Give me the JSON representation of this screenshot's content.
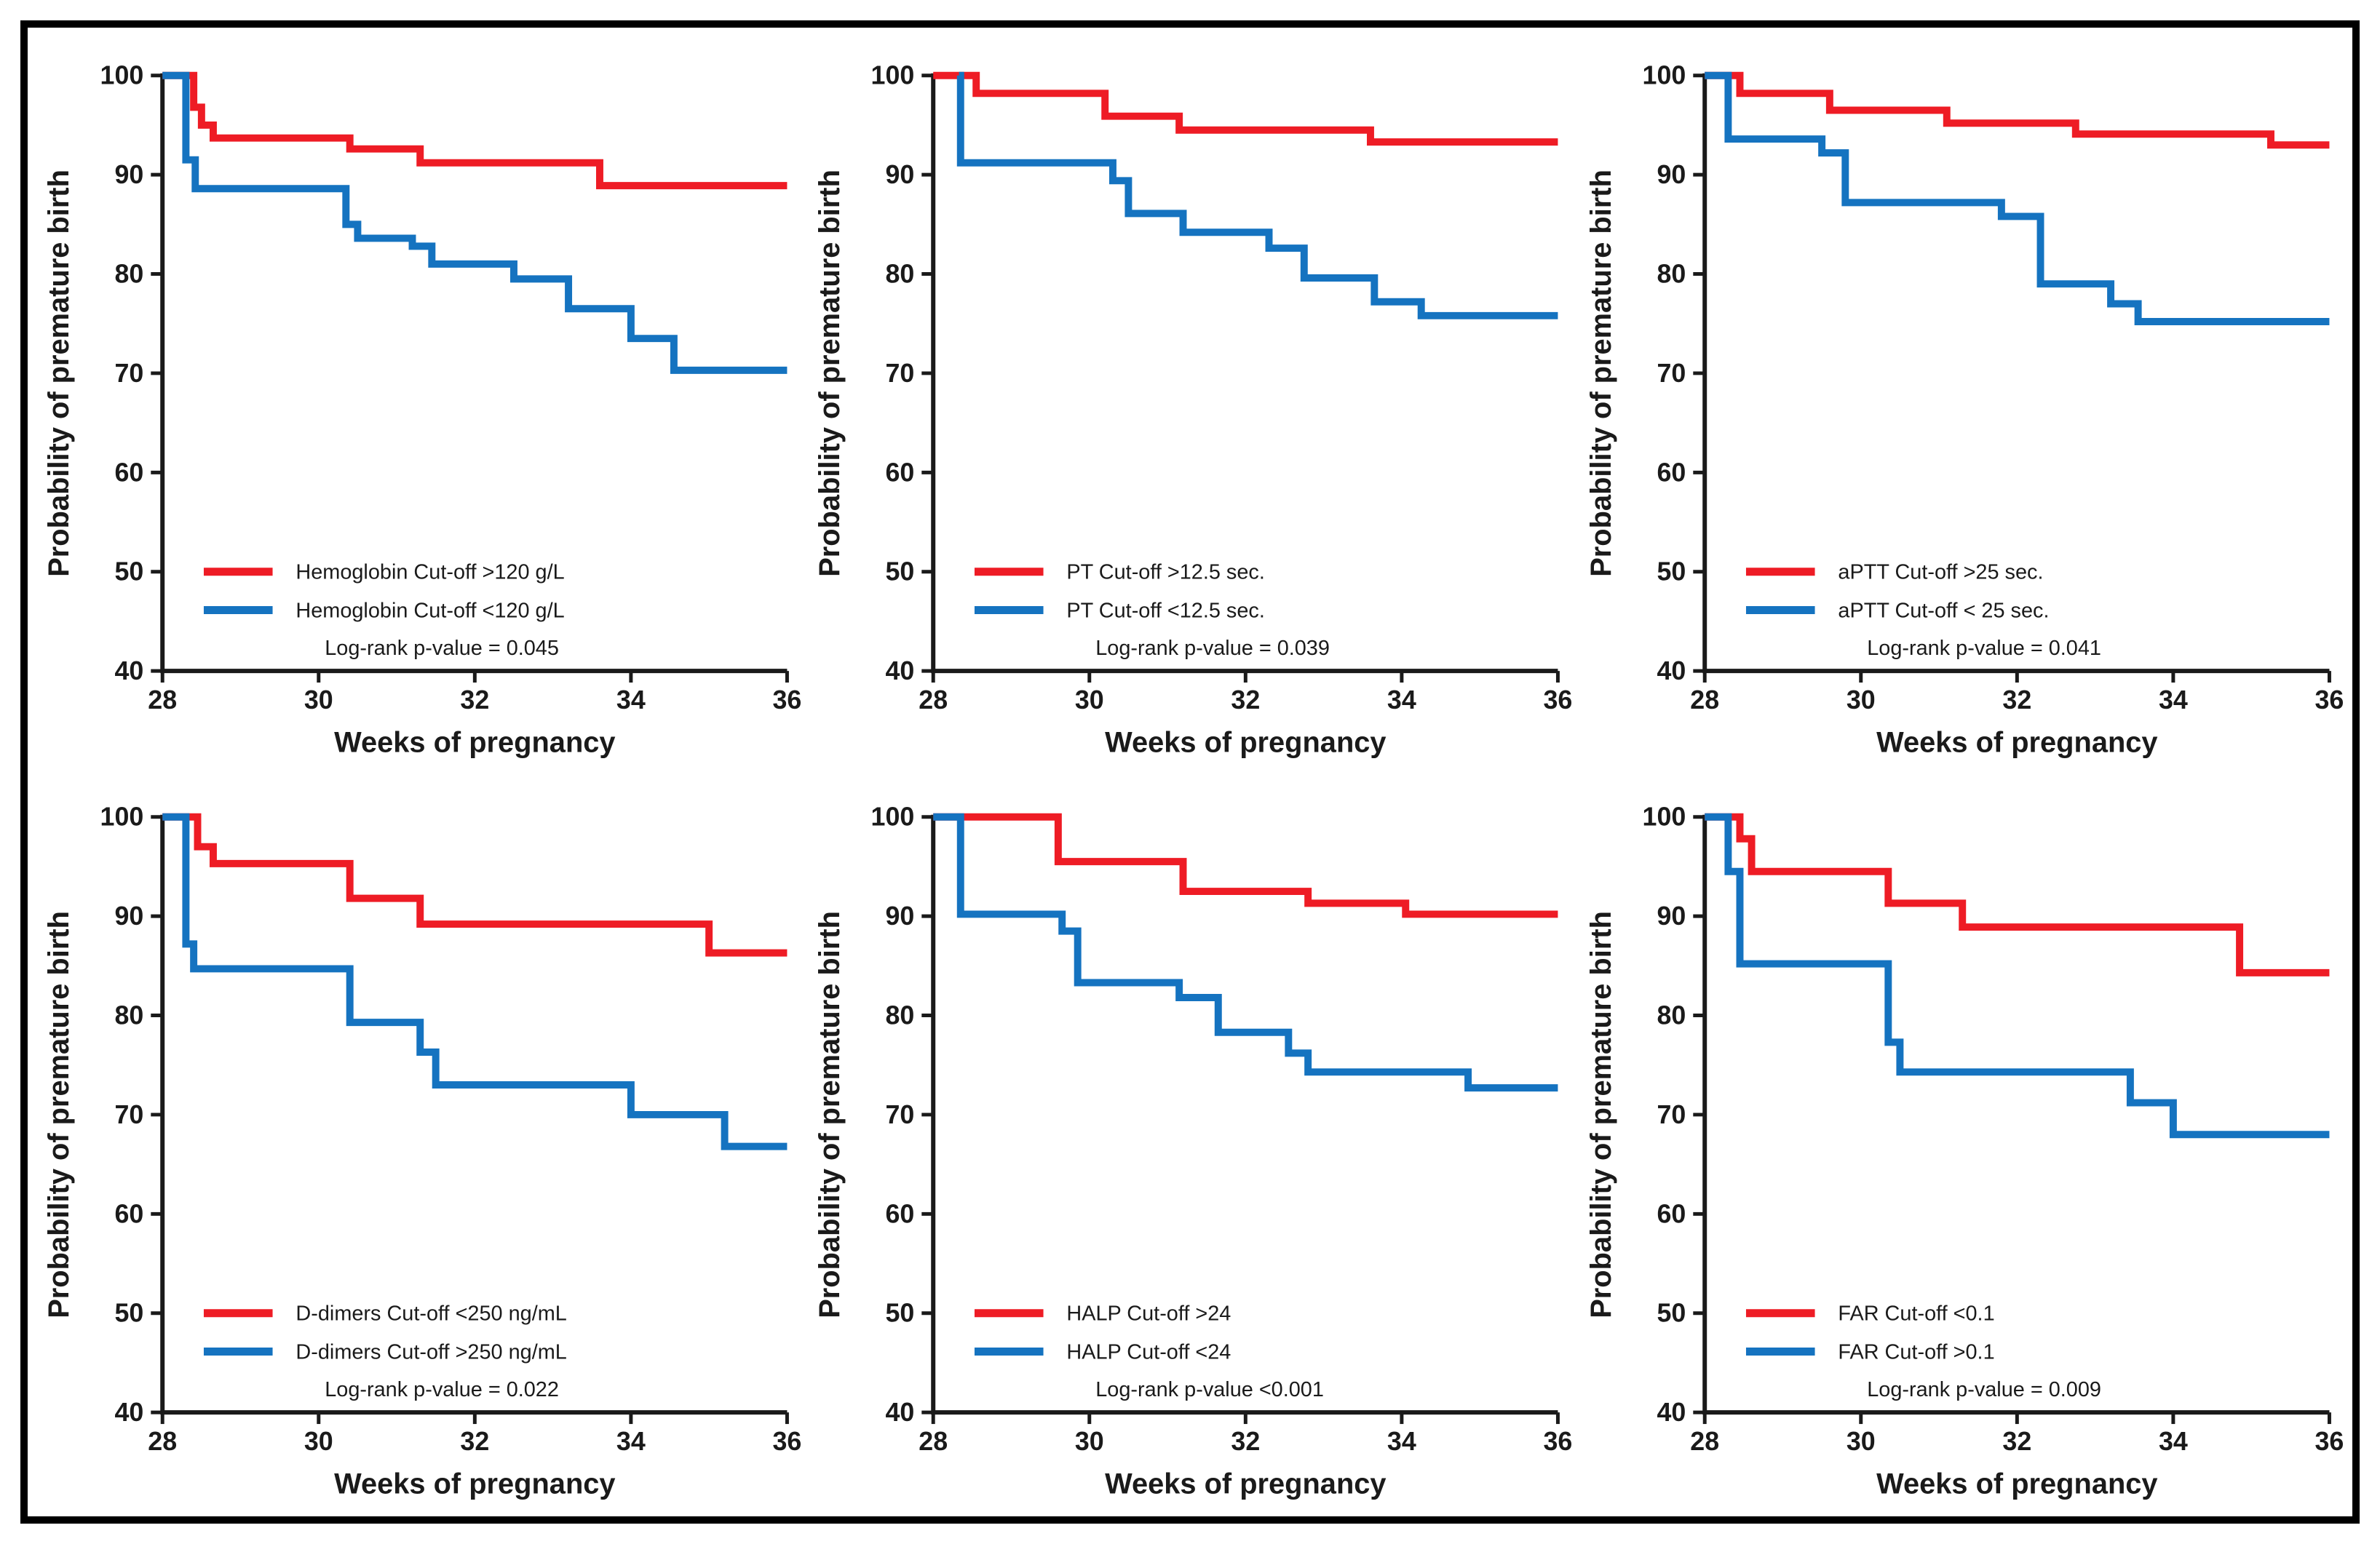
{
  "figure": {
    "frame_color": "#000000",
    "background": "#ffffff",
    "axis_color": "#1a1a1a",
    "series_colors": {
      "red": "#ee1c25",
      "blue": "#1573c0"
    }
  },
  "chart_data": [
    {
      "type": "line",
      "subtype": "kaplan-meier-step",
      "panel": "hemoglobin",
      "xlabel": "Weeks of pregnancy",
      "ylabel": "Probability of premature birth",
      "xlim": [
        28,
        36
      ],
      "ylim": [
        40,
        100
      ],
      "xticks": [
        28,
        30,
        32,
        34,
        36
      ],
      "yticks": [
        40,
        50,
        60,
        70,
        80,
        90,
        100
      ],
      "grid": false,
      "legend_position": "lower-left",
      "annotation": "Log-rank p-value = 0.045",
      "series": [
        {
          "name": "Hemoglobin Cut-off >120 g/L",
          "color": "red",
          "step_points": [
            [
              28,
              100
            ],
            [
              28.4,
              96.8
            ],
            [
              28.5,
              95.0
            ],
            [
              28.65,
              93.7
            ],
            [
              30.4,
              92.6
            ],
            [
              31.3,
              91.2
            ],
            [
              33.6,
              88.9
            ],
            [
              36,
              88.9
            ]
          ]
        },
        {
          "name": "Hemoglobin Cut-off <120 g/L",
          "color": "blue",
          "step_points": [
            [
              28,
              100
            ],
            [
              28.3,
              91.5
            ],
            [
              28.42,
              88.6
            ],
            [
              30.35,
              85.0
            ],
            [
              30.5,
              83.6
            ],
            [
              31.2,
              82.8
            ],
            [
              31.45,
              81.0
            ],
            [
              32.5,
              79.5
            ],
            [
              33.2,
              76.5
            ],
            [
              34.0,
              73.5
            ],
            [
              34.55,
              70.3
            ],
            [
              36,
              70.3
            ]
          ]
        }
      ]
    },
    {
      "type": "line",
      "subtype": "kaplan-meier-step",
      "panel": "pt",
      "xlabel": "Weeks of pregnancy",
      "ylabel": "Probability of premature birth",
      "xlim": [
        28,
        36
      ],
      "ylim": [
        40,
        100
      ],
      "xticks": [
        28,
        30,
        32,
        34,
        36
      ],
      "yticks": [
        40,
        50,
        60,
        70,
        80,
        90,
        100
      ],
      "grid": false,
      "legend_position": "lower-left",
      "annotation": "Log-rank p-value = 0.039",
      "series": [
        {
          "name": "PT Cut-off >12.5 sec.",
          "color": "red",
          "step_points": [
            [
              28,
              100
            ],
            [
              28.55,
              98.2
            ],
            [
              30.2,
              95.9
            ],
            [
              31.15,
              94.5
            ],
            [
              33.6,
              93.3
            ],
            [
              36,
              93.3
            ]
          ]
        },
        {
          "name": "PT Cut-off <12.5 sec.",
          "color": "blue",
          "step_points": [
            [
              28.33,
              100
            ],
            [
              28.35,
              91.2
            ],
            [
              30.3,
              89.4
            ],
            [
              30.5,
              86.1
            ],
            [
              31.2,
              84.2
            ],
            [
              32.3,
              82.6
            ],
            [
              32.75,
              79.6
            ],
            [
              33.65,
              77.2
            ],
            [
              34.25,
              75.8
            ],
            [
              36,
              75.8
            ]
          ]
        }
      ]
    },
    {
      "type": "line",
      "subtype": "kaplan-meier-step",
      "panel": "aptt",
      "xlabel": "Weeks of pregnancy",
      "ylabel": "Probability of premature birth",
      "xlim": [
        28,
        36
      ],
      "ylim": [
        40,
        100
      ],
      "xticks": [
        28,
        30,
        32,
        34,
        36
      ],
      "yticks": [
        40,
        50,
        60,
        70,
        80,
        90,
        100
      ],
      "grid": false,
      "legend_position": "lower-left",
      "annotation": "Log-rank p-value = 0.041",
      "series": [
        {
          "name": "aPTT Cut-off >25 sec.",
          "color": "red",
          "step_points": [
            [
              28,
              100
            ],
            [
              28.45,
              98.2
            ],
            [
              29.6,
              96.5
            ],
            [
              31.1,
              95.2
            ],
            [
              32.75,
              94.1
            ],
            [
              35.25,
              93.0
            ],
            [
              36,
              93.0
            ]
          ]
        },
        {
          "name": "aPTT Cut-off < 25 sec.",
          "color": "blue",
          "step_points": [
            [
              28,
              100
            ],
            [
              28.3,
              93.6
            ],
            [
              29.5,
              92.2
            ],
            [
              29.8,
              87.2
            ],
            [
              31.8,
              85.8
            ],
            [
              32.3,
              79.0
            ],
            [
              33.2,
              77.0
            ],
            [
              33.55,
              75.2
            ],
            [
              36,
              75.2
            ]
          ]
        }
      ]
    },
    {
      "type": "line",
      "subtype": "kaplan-meier-step",
      "panel": "d-dimers",
      "xlabel": "Weeks of pregnancy",
      "ylabel": "Probability of premature birth",
      "xlim": [
        28,
        36
      ],
      "ylim": [
        40,
        100
      ],
      "xticks": [
        28,
        30,
        32,
        34,
        36
      ],
      "yticks": [
        40,
        50,
        60,
        70,
        80,
        90,
        100
      ],
      "grid": false,
      "legend_position": "lower-left",
      "annotation": "Log-rank p-value = 0.022",
      "series": [
        {
          "name": "D-dimers Cut-off <250 ng/mL",
          "color": "red",
          "step_points": [
            [
              28,
              100
            ],
            [
              28.45,
              97.0
            ],
            [
              28.65,
              95.3
            ],
            [
              30.4,
              91.8
            ],
            [
              31.3,
              89.2
            ],
            [
              35.0,
              86.3
            ],
            [
              36,
              86.3
            ]
          ]
        },
        {
          "name": "D-dimers Cut-off >250 ng/mL",
          "color": "blue",
          "step_points": [
            [
              28,
              100
            ],
            [
              28.3,
              87.2
            ],
            [
              28.4,
              84.7
            ],
            [
              30.4,
              79.3
            ],
            [
              31.3,
              76.3
            ],
            [
              31.5,
              73.0
            ],
            [
              34.0,
              70.0
            ],
            [
              35.2,
              66.8
            ],
            [
              36,
              66.8
            ]
          ]
        }
      ]
    },
    {
      "type": "line",
      "subtype": "kaplan-meier-step",
      "panel": "halp",
      "xlabel": "Weeks of pregnancy",
      "ylabel": "Probability of premature birth",
      "xlim": [
        28,
        36
      ],
      "ylim": [
        40,
        100
      ],
      "xticks": [
        28,
        30,
        32,
        34,
        36
      ],
      "yticks": [
        40,
        50,
        60,
        70,
        80,
        90,
        100
      ],
      "grid": false,
      "legend_position": "lower-left",
      "annotation": "Log-rank p-value <0.001",
      "series": [
        {
          "name": "HALP Cut-off >24",
          "color": "red",
          "step_points": [
            [
              28,
              100
            ],
            [
              29.6,
              95.5
            ],
            [
              31.2,
              92.5
            ],
            [
              32.8,
              91.3
            ],
            [
              34.05,
              90.2
            ],
            [
              36,
              90.2
            ]
          ]
        },
        {
          "name": "HALP Cut-off <24",
          "color": "blue",
          "step_points": [
            [
              28,
              100
            ],
            [
              28.35,
              90.2
            ],
            [
              29.65,
              88.5
            ],
            [
              29.85,
              83.3
            ],
            [
              31.15,
              81.8
            ],
            [
              31.65,
              78.3
            ],
            [
              32.55,
              76.2
            ],
            [
              32.8,
              74.3
            ],
            [
              34.85,
              72.7
            ],
            [
              36,
              72.7
            ]
          ]
        }
      ]
    },
    {
      "type": "line",
      "subtype": "kaplan-meier-step",
      "panel": "far",
      "xlabel": "Weeks of pregnancy",
      "ylabel": "Probability of premature birth",
      "xlim": [
        28,
        36
      ],
      "ylim": [
        40,
        100
      ],
      "xticks": [
        28,
        30,
        32,
        34,
        36
      ],
      "yticks": [
        40,
        50,
        60,
        70,
        80,
        90,
        100
      ],
      "grid": false,
      "legend_position": "lower-left",
      "annotation": "Log-rank p-value = 0.009",
      "series": [
        {
          "name": "FAR Cut-off <0.1",
          "color": "red",
          "step_points": [
            [
              28,
              100
            ],
            [
              28.45,
              97.8
            ],
            [
              28.6,
              94.5
            ],
            [
              30.35,
              91.3
            ],
            [
              31.3,
              88.9
            ],
            [
              34.85,
              84.3
            ],
            [
              36,
              84.3
            ]
          ]
        },
        {
          "name": "FAR Cut-off >0.1",
          "color": "blue",
          "step_points": [
            [
              28,
              100
            ],
            [
              28.3,
              94.5
            ],
            [
              28.45,
              85.2
            ],
            [
              30.35,
              77.3
            ],
            [
              30.5,
              74.3
            ],
            [
              33.45,
              71.2
            ],
            [
              34.0,
              68.0
            ],
            [
              36,
              68.0
            ]
          ]
        }
      ]
    }
  ]
}
